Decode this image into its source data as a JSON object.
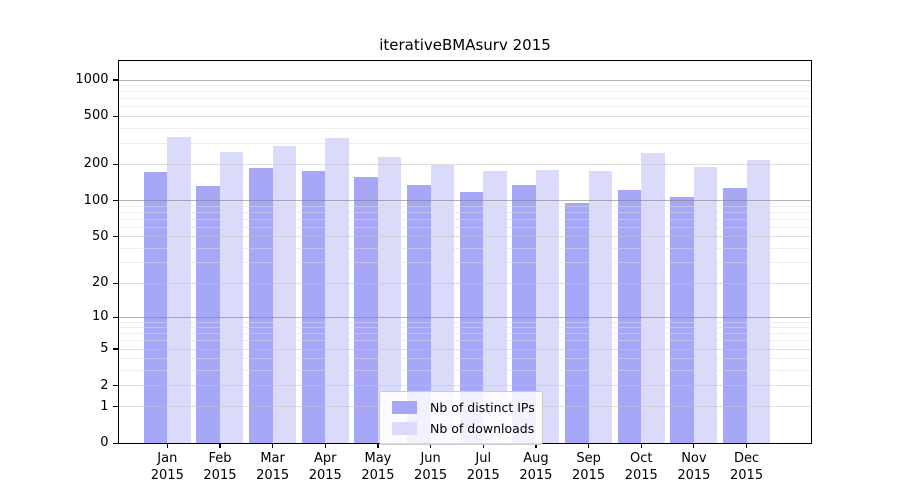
{
  "title": "iterativeBMAsurv 2015",
  "legend": {
    "items": [
      {
        "label": "Nb of distinct IPs"
      },
      {
        "label": "Nb of downloads"
      }
    ]
  },
  "chart_data": {
    "type": "bar",
    "title": "iterativeBMAsurv 2015",
    "x_categories": [
      "Jan",
      "Feb",
      "Mar",
      "Apr",
      "May",
      "Jun",
      "Jul",
      "Aug",
      "Sep",
      "Oct",
      "Nov",
      "Dec"
    ],
    "x_year": "2015",
    "series": [
      {
        "name": "Nb of distinct IPs",
        "color": "#a7a7f7",
        "values": [
          172,
          133,
          186,
          178,
          157,
          136,
          119,
          135,
          96,
          123,
          108,
          128
        ]
      },
      {
        "name": "Nb of downloads",
        "color": "#dadafa",
        "values": [
          337,
          253,
          284,
          330,
          229,
          199,
          176,
          181,
          176,
          250,
          190,
          216
        ]
      }
    ],
    "yscale": "log1p",
    "ylim": [
      0,
      1464
    ],
    "yticks": [
      0,
      1,
      2,
      5,
      10,
      20,
      50,
      100,
      200,
      500,
      1000
    ],
    "yticks_minor": [
      3,
      4,
      6,
      7,
      8,
      9,
      30,
      40,
      60,
      70,
      80,
      90,
      300,
      400,
      600,
      700,
      800,
      900
    ],
    "grid": "horizontal",
    "legend_position": "lower-center"
  }
}
